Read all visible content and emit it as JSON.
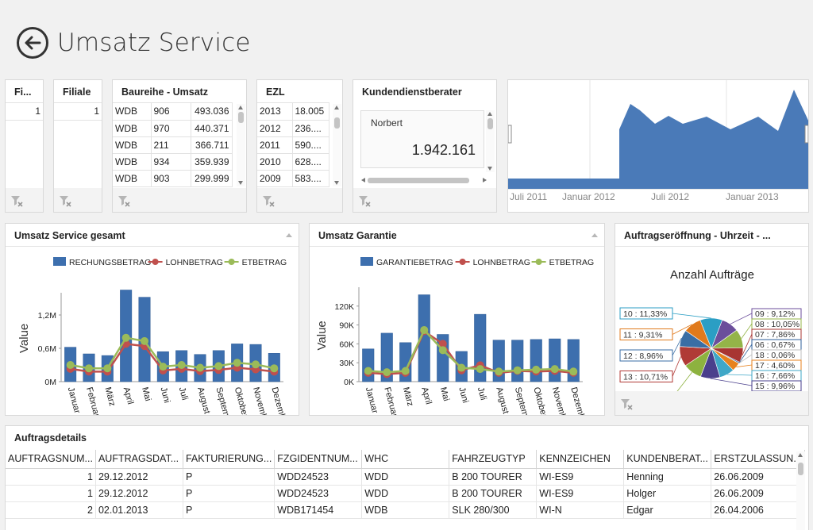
{
  "header": {
    "title": "Umsatz Service"
  },
  "filiale_short": {
    "title": "Fi...",
    "values": [
      "1"
    ]
  },
  "filiale": {
    "title": "Filiale",
    "values": [
      "1"
    ]
  },
  "baureihe": {
    "title": "Baureihe - Umsatz",
    "rows": [
      [
        "WDB",
        "906",
        "493.036"
      ],
      [
        "WDB",
        "970",
        "440.371"
      ],
      [
        "WDB",
        "211",
        "366.711"
      ],
      [
        "WDB",
        "934",
        "359.939"
      ],
      [
        "WDB",
        "903",
        "299.999"
      ]
    ]
  },
  "ezl": {
    "title": "EZL",
    "rows": [
      [
        "2013",
        "18.005"
      ],
      [
        "2012",
        "236...."
      ],
      [
        "2011",
        "590...."
      ],
      [
        "2010",
        "628...."
      ],
      [
        "2009",
        "583...."
      ]
    ]
  },
  "kundendienst": {
    "title": "Kundendienstberater",
    "name": "Norbert",
    "value": "1.942.161"
  },
  "range_chart": {
    "labels": [
      "Juli 2011",
      "Januar 2012",
      "Juli 2012",
      "Januar 2013"
    ],
    "color": "#4a7ab8"
  },
  "umsatz_service": {
    "title": "Umsatz Service gesamt",
    "chart_data": {
      "type": "bar",
      "ylabel": "Value",
      "ylim": [
        0,
        1600000
      ],
      "yticks": [
        "0M",
        "0,6M",
        "1,2M"
      ],
      "categories": [
        "Januar",
        "Februar",
        "März",
        "April",
        "Mai",
        "Juni",
        "Juli",
        "August",
        "September",
        "Oktober",
        "November",
        "Dezember"
      ],
      "series": [
        {
          "name": "RECHUNGSBETRAG",
          "type": "bar",
          "color": "#3d6fae",
          "values": [
            620000,
            500000,
            470000,
            1650000,
            1520000,
            540000,
            560000,
            490000,
            560000,
            680000,
            670000,
            510000
          ]
        },
        {
          "name": "LOHNBETRAG",
          "type": "line",
          "color": "#c0504d",
          "values": [
            230000,
            180000,
            180000,
            680000,
            640000,
            200000,
            230000,
            190000,
            210000,
            250000,
            220000,
            180000
          ]
        },
        {
          "name": "ETBETRAG",
          "type": "line",
          "color": "#9bbb59",
          "values": [
            300000,
            240000,
            240000,
            790000,
            730000,
            270000,
            300000,
            250000,
            280000,
            340000,
            310000,
            240000
          ]
        }
      ]
    }
  },
  "umsatz_garantie": {
    "title": "Umsatz Garantie",
    "chart_data": {
      "type": "bar",
      "ylabel": "Value",
      "ylim": [
        0,
        150000
      ],
      "yticks": [
        "0K",
        "30K",
        "60K",
        "90K",
        "120K"
      ],
      "categories": [
        "Januar",
        "Februar",
        "März",
        "April",
        "Mai",
        "Juni",
        "Juli",
        "August",
        "September",
        "Oktober",
        "November",
        "Dezember"
      ],
      "series": [
        {
          "name": "GARANTIEBETRAG",
          "type": "bar",
          "color": "#3d6fae",
          "values": [
            52000,
            77000,
            62000,
            138000,
            75000,
            48000,
            107000,
            66000,
            66000,
            67000,
            68000,
            67000
          ]
        },
        {
          "name": "LOHNBETRAG",
          "type": "line",
          "color": "#c0504d",
          "values": [
            14000,
            12000,
            14000,
            80000,
            60000,
            18000,
            26000,
            14000,
            17000,
            16000,
            17000,
            14000
          ]
        },
        {
          "name": "ETBETRAG",
          "type": "line",
          "color": "#9bbb59",
          "values": [
            17000,
            15000,
            17000,
            82000,
            50000,
            22000,
            20000,
            16000,
            18000,
            19000,
            20000,
            16000
          ]
        }
      ]
    }
  },
  "auftragseroeffnung": {
    "title": "Auftragseröffnung - Uhrzeit - ...",
    "chart_data": {
      "type": "pie",
      "title": "Anzahl Aufträge",
      "slices": [
        {
          "label": "09 : 9,12%",
          "value": 9.12,
          "color": "#6b4e9b"
        },
        {
          "label": "08 : 10,05%",
          "value": 10.05,
          "color": "#94b448"
        },
        {
          "label": "07 : 7,86%",
          "value": 7.86,
          "color": "#a83532"
        },
        {
          "label": "06 : 0,67%",
          "value": 0.67,
          "color": "#2f5f98"
        },
        {
          "label": "18 : 0,06%",
          "value": 0.06,
          "color": "#bfbfbf"
        },
        {
          "label": "17 : 4,60%",
          "value": 4.6,
          "color": "#e7821e"
        },
        {
          "label": "16 : 7,66%",
          "value": 7.66,
          "color": "#3fa7c7"
        },
        {
          "label": "15 : 9,96%",
          "value": 9.96,
          "color": "#4a3f8c"
        },
        {
          "label": "14 : 9,70%",
          "value": 9.7,
          "color": "#8db23f"
        },
        {
          "label": "13 : 10,71%",
          "value": 10.71,
          "color": "#b03a36"
        },
        {
          "label": "12 : 8,96%",
          "value": 8.96,
          "color": "#3a6ea5"
        },
        {
          "label": "11 : 9,31%",
          "value": 9.31,
          "color": "#e07a1c"
        },
        {
          "label": "10 : 11,33%",
          "value": 11.33,
          "color": "#2b9ec4"
        }
      ]
    }
  },
  "auftragsdetails": {
    "title": "Auftragsdetails",
    "columns": [
      "AUFTRAGSNUM...",
      "AUFTRAGSDAT...",
      "FAKTURIERUNG...",
      "FZGIDENTNUM...",
      "WHC",
      "FAHRZEUGTYP",
      "KENNZEICHEN",
      "KUNDENBERAT...",
      "ERSTZULASSUN..."
    ],
    "rows": [
      [
        "1",
        "29.12.2012",
        "P",
        "WDD24523",
        "WDD",
        "B 200 TOURER",
        "WI-ES9",
        "Henning",
        "26.06.2009"
      ],
      [
        "1",
        "29.12.2012",
        "P",
        "WDD24523",
        "WDD",
        "B 200 TOURER",
        "WI-ES9",
        "Holger",
        "26.06.2009"
      ],
      [
        "2",
        "02.01.2013",
        "P",
        "WDB171454",
        "WDB",
        "SLK 280/300",
        "WI-N",
        "Edgar",
        "26.04.2006"
      ]
    ]
  }
}
